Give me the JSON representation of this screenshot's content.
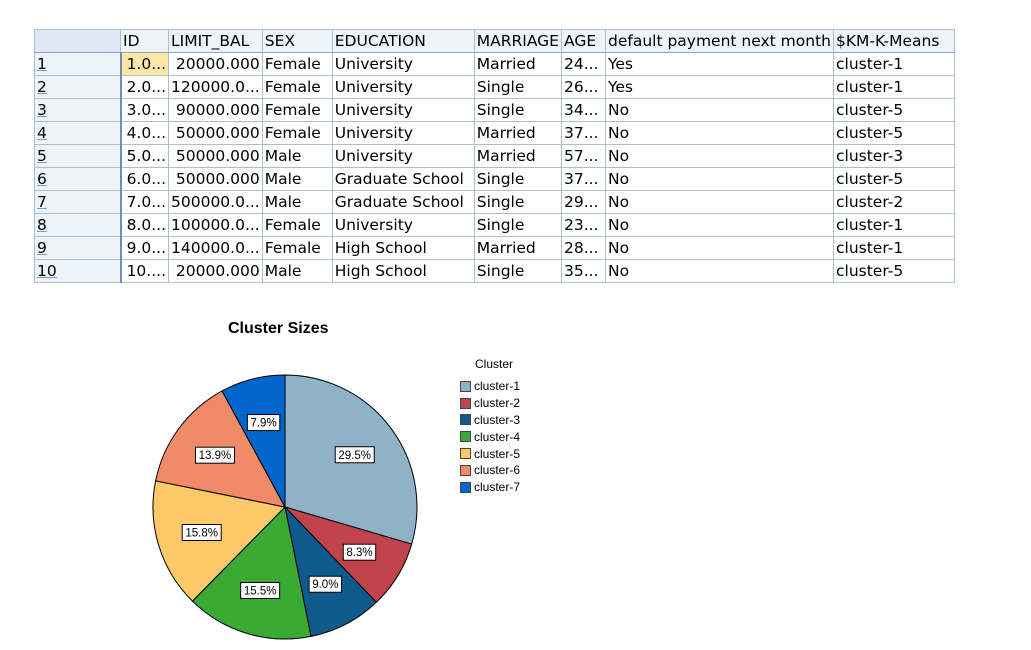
{
  "table": {
    "columns": [
      "ID",
      "LIMIT_BAL",
      "SEX",
      "EDUCATION",
      "MARRIAGE",
      "AGE",
      "default payment next month",
      "$KM-K-Means"
    ],
    "rows": [
      {
        "row": "1",
        "cells": [
          "1.0...",
          "20000.000",
          "Female",
          "University",
          "Married",
          "24...",
          "Yes",
          "cluster-1"
        ]
      },
      {
        "row": "2",
        "cells": [
          "2.0...",
          "120000.0...",
          "Female",
          "University",
          "Single",
          "26...",
          "Yes",
          "cluster-1"
        ]
      },
      {
        "row": "3",
        "cells": [
          "3.0...",
          "90000.000",
          "Female",
          "University",
          "Single",
          "34...",
          "No",
          "cluster-5"
        ]
      },
      {
        "row": "4",
        "cells": [
          "4.0...",
          "50000.000",
          "Female",
          "University",
          "Married",
          "37...",
          "No",
          "cluster-5"
        ]
      },
      {
        "row": "5",
        "cells": [
          "5.0...",
          "50000.000",
          "Male",
          "University",
          "Married",
          "57...",
          "No",
          "cluster-3"
        ]
      },
      {
        "row": "6",
        "cells": [
          "6.0...",
          "50000.000",
          "Male",
          "Graduate School",
          "Single",
          "37...",
          "No",
          "cluster-5"
        ]
      },
      {
        "row": "7",
        "cells": [
          "7.0...",
          "500000.0...",
          "Male",
          "Graduate School",
          "Single",
          "29...",
          "No",
          "cluster-2"
        ]
      },
      {
        "row": "8",
        "cells": [
          "8.0...",
          "100000.0...",
          "Female",
          "University",
          "Single",
          "23...",
          "No",
          "cluster-1"
        ]
      },
      {
        "row": "9",
        "cells": [
          "9.0...",
          "140000.0...",
          "Female",
          "High School",
          "Married",
          "28...",
          "No",
          "cluster-1"
        ]
      },
      {
        "row": "10",
        "cells": [
          "10....",
          "20000.000",
          "Male",
          "High School",
          "Single",
          "35...",
          "No",
          "cluster-5"
        ]
      }
    ],
    "selected_cell": {
      "row": 0,
      "col": 0
    }
  },
  "chart_data": {
    "type": "pie",
    "title": "Cluster Sizes",
    "legend_title": "Cluster",
    "legend_position": "right",
    "categories": [
      "cluster-1",
      "cluster-2",
      "cluster-3",
      "cluster-4",
      "cluster-5",
      "cluster-6",
      "cluster-7"
    ],
    "values": [
      29.5,
      8.3,
      9.0,
      15.5,
      15.8,
      13.9,
      7.9
    ],
    "labels": [
      "29.5%",
      "8.3%",
      "9.0%",
      "15.5%",
      "15.8%",
      "13.9%",
      "7.9%"
    ],
    "colors": [
      "#8fb2c9",
      "#c1434c",
      "#0f5a8d",
      "#3aaa35",
      "#fdc867",
      "#ef8b68",
      "#0066cc"
    ],
    "start": "12 o'clock",
    "direction": "clockwise"
  }
}
